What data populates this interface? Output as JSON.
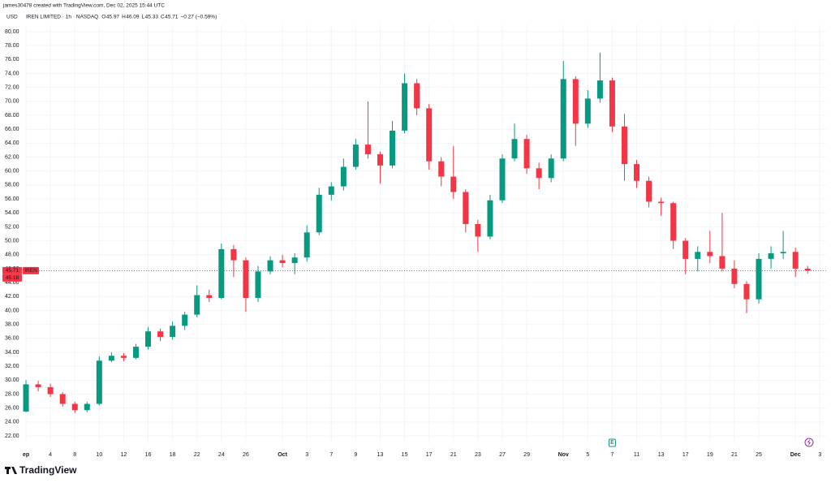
{
  "header": {
    "credit": "james30478 created with TradingView.com, Dec 02, 2025 15:44 UTC"
  },
  "footer": {
    "logo": "TradingView"
  },
  "chart_data": {
    "type": "candlestick",
    "currency": "USD",
    "symbol": "IREN LIMITED · 1h · NASDAQ",
    "ohlc_legend": [
      {
        "label": "O",
        "value": 45.97
      },
      {
        "label": "H",
        "value": 46.09
      },
      {
        "label": "L",
        "value": 45.33
      },
      {
        "label": "C",
        "value": 45.71
      }
    ],
    "change": "−0.27 (−0.59%)",
    "categories": [
      "ep",
      null,
      "4",
      null,
      "8",
      null,
      "10",
      null,
      "12",
      null,
      "16",
      null,
      "18",
      null,
      "22",
      null,
      "24",
      null,
      "26",
      null,
      null,
      "Oct",
      null,
      "3",
      null,
      "7",
      null,
      "9",
      null,
      "13",
      null,
      "15",
      null,
      "17",
      null,
      "21",
      null,
      "23",
      null,
      "27",
      null,
      "29",
      null,
      null,
      "Nov",
      null,
      "5",
      null,
      "7",
      null,
      "11",
      null,
      "13",
      null,
      "17",
      null,
      "19",
      null,
      "21",
      null,
      "25",
      null,
      null,
      "Dec",
      null,
      "3"
    ],
    "open": [
      25.5,
      29.4,
      29.0,
      28.0,
      26.6,
      25.7,
      26.6,
      32.8,
      33.5,
      33.2,
      34.8,
      37.0,
      36.2,
      37.8,
      39.4,
      42.2,
      41.8,
      48.8,
      47.2,
      41.8,
      45.6,
      47.2,
      46.8,
      47.6,
      51.2,
      56.6,
      57.8,
      60.6,
      63.8,
      62.4,
      60.8,
      65.8,
      72.6,
      69.0,
      61.4,
      59.2,
      57.0,
      52.4,
      50.6,
      55.8,
      61.8,
      64.6,
      60.4,
      59.0,
      61.8,
      73.2,
      66.8,
      70.4,
      73.0,
      66.4,
      61.0,
      58.6,
      55.6,
      55.4,
      50.0,
      47.4,
      48.4,
      47.8,
      46.0,
      43.8,
      41.6,
      47.4,
      48.2,
      48.4,
      46.0,
      null
    ],
    "high": [
      30.0,
      29.9,
      29.5,
      28.3,
      26.9,
      26.9,
      33.4,
      34.0,
      33.9,
      35.2,
      37.6,
      37.4,
      38.4,
      39.8,
      43.6,
      43.0,
      49.6,
      49.4,
      47.6,
      46.4,
      47.8,
      48.0,
      48.2,
      52.2,
      57.6,
      58.4,
      61.8,
      64.6,
      70.0,
      62.8,
      67.2,
      74.0,
      73.2,
      69.6,
      62.0,
      63.6,
      57.4,
      53.0,
      56.6,
      62.4,
      66.8,
      65.2,
      61.2,
      62.4,
      75.8,
      73.6,
      71.6,
      77.0,
      73.4,
      68.2,
      61.6,
      59.2,
      56.2,
      55.6,
      50.4,
      49.2,
      51.4,
      54.0,
      47.2,
      44.2,
      48.2,
      49.2,
      51.4,
      49.0,
      46.4,
      null
    ],
    "low": [
      25.4,
      28.4,
      27.6,
      26.2,
      25.3,
      25.4,
      26.4,
      32.6,
      32.7,
      33.0,
      34.4,
      35.6,
      35.8,
      37.2,
      39.0,
      41.2,
      41.6,
      44.8,
      39.8,
      41.2,
      45.2,
      46.2,
      45.2,
      47.0,
      50.8,
      55.8,
      57.2,
      60.2,
      61.8,
      58.2,
      60.4,
      65.4,
      68.0,
      60.2,
      57.8,
      56.0,
      51.2,
      48.4,
      50.2,
      55.4,
      61.4,
      59.6,
      57.4,
      58.4,
      61.4,
      63.6,
      66.2,
      69.8,
      65.6,
      58.6,
      57.6,
      54.8,
      53.6,
      48.8,
      45.2,
      45.6,
      46.8,
      45.6,
      43.2,
      39.6,
      41.0,
      46.0,
      47.4,
      44.8,
      45.3,
      null
    ],
    "close": [
      29.4,
      29.0,
      28.0,
      26.6,
      25.7,
      26.6,
      32.8,
      33.5,
      33.2,
      34.8,
      37.0,
      36.2,
      37.8,
      39.4,
      42.2,
      41.8,
      48.8,
      47.2,
      41.8,
      45.6,
      47.2,
      46.8,
      47.6,
      51.2,
      56.6,
      57.8,
      60.6,
      63.8,
      62.4,
      60.8,
      65.8,
      72.6,
      69.0,
      61.4,
      59.2,
      57.0,
      52.4,
      50.6,
      55.8,
      61.8,
      64.6,
      60.4,
      59.0,
      61.8,
      73.2,
      66.8,
      70.4,
      73.0,
      66.4,
      61.0,
      58.6,
      55.6,
      55.4,
      50.0,
      47.4,
      48.4,
      47.8,
      46.0,
      43.8,
      41.6,
      47.4,
      48.2,
      48.4,
      46.0,
      45.71,
      null
    ],
    "up_color": "#089981",
    "down_color": "#f23645",
    "ylim": [
      21,
      81
    ],
    "yticks": [
      {
        "value": 22,
        "label": "22.00"
      },
      {
        "value": 24,
        "label": "24.00"
      },
      {
        "value": 26,
        "label": "26.00"
      },
      {
        "value": 28,
        "label": "28.00"
      },
      {
        "value": 30,
        "label": "30.00"
      },
      {
        "value": 32,
        "label": "32.00"
      },
      {
        "value": 34,
        "label": "34.00"
      },
      {
        "value": 36,
        "label": "36.00"
      },
      {
        "value": 38,
        "label": "38.00"
      },
      {
        "value": 40,
        "label": "40.00"
      },
      {
        "value": 42,
        "label": "42.00"
      },
      {
        "value": 44,
        "label": "44.00"
      },
      {
        "value": 46,
        "label": "46.00"
      },
      {
        "value": 48,
        "label": "48.00"
      },
      {
        "value": 50,
        "label": "50.00"
      },
      {
        "value": 52,
        "label": "52.00"
      },
      {
        "value": 54,
        "label": "54.00"
      },
      {
        "value": 56,
        "label": "56.00"
      },
      {
        "value": 58,
        "label": "58.00"
      },
      {
        "value": 60,
        "label": "60.00"
      },
      {
        "value": 62,
        "label": "62.00"
      },
      {
        "value": 64,
        "label": "64.00"
      },
      {
        "value": 66,
        "label": "66.00"
      },
      {
        "value": 68,
        "label": "68.00"
      },
      {
        "value": 70,
        "label": "70.00"
      },
      {
        "value": 72,
        "label": "72.00"
      },
      {
        "value": 74,
        "label": "74.00"
      },
      {
        "value": 76,
        "label": "76.00"
      },
      {
        "value": 78,
        "label": "78.00"
      },
      {
        "value": 80,
        "label": "80.00"
      }
    ],
    "grid": true,
    "last_price": 45.71,
    "last_price_tag": "IREN",
    "second_price": 45.18,
    "event_label": "E"
  }
}
